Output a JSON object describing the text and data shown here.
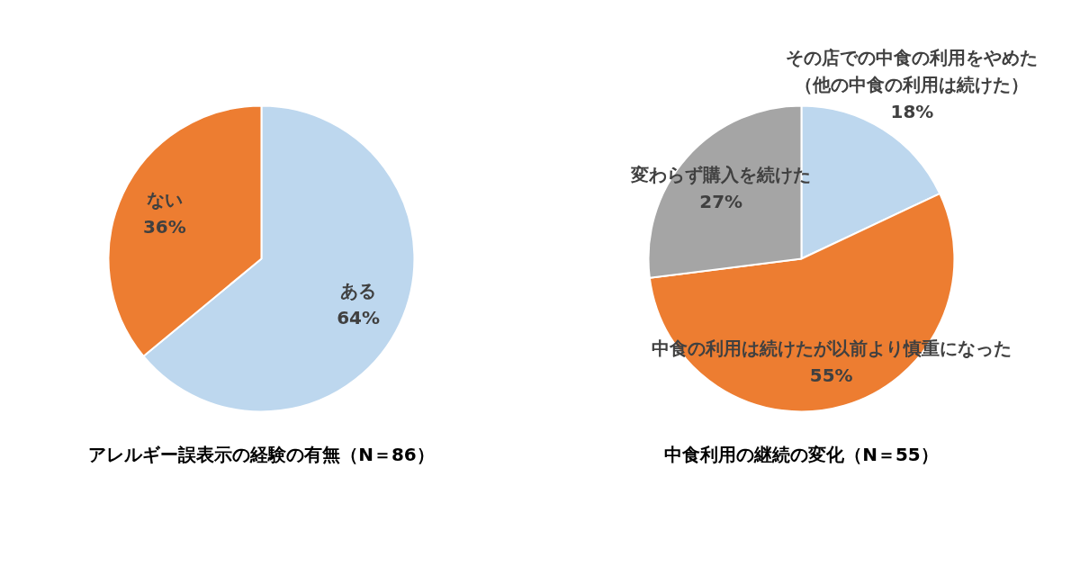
{
  "chart_data": [
    {
      "type": "pie",
      "title": "アレルギー誤表示の経験の有無（N＝86）",
      "categories": [
        "ある",
        "ない"
      ],
      "values": [
        64,
        36
      ],
      "colors": [
        "#bdd7ee",
        "#ed7d31"
      ],
      "value_labels": [
        "64%",
        "36%"
      ]
    },
    {
      "type": "pie",
      "title": "中食利用の継続の変化（N＝55）",
      "categories": [
        "その店での中食の利用をやめた（他の中食の利用は続けた）",
        "中食の利用は続けたが以前より慎重になった",
        "変わらず購入を続けた"
      ],
      "values": [
        18,
        55,
        27
      ],
      "colors": [
        "#bdd7ee",
        "#ed7d31",
        "#a5a5a5"
      ],
      "value_labels": [
        "18%",
        "55%",
        "27%"
      ]
    }
  ]
}
